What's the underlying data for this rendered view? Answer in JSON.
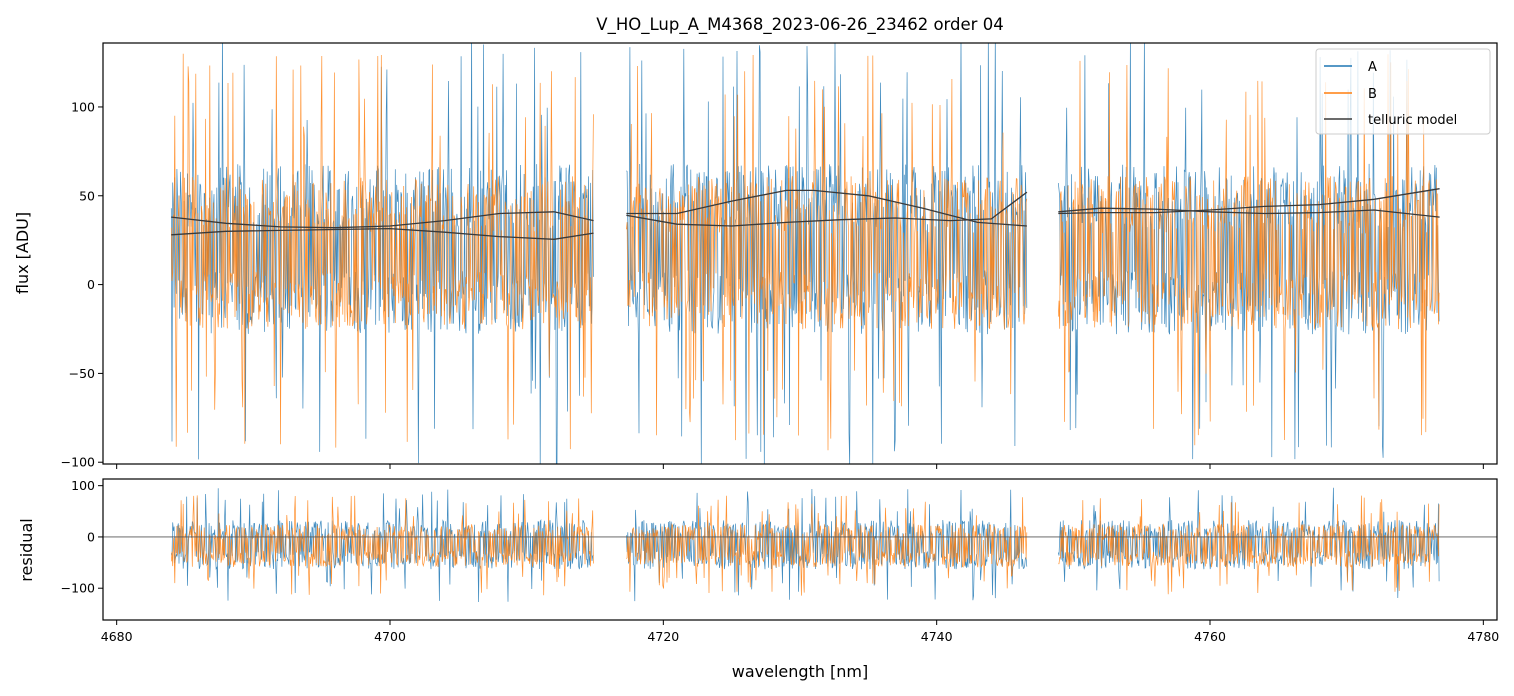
{
  "chart_data": {
    "type": "line",
    "title": "V_HO_Lup_A_M4368_2023-06-26_23462  order 04",
    "xlabel": "wavelength [nm]",
    "xlim": [
      4679,
      4781
    ],
    "x_ticks": [
      4680,
      4700,
      4720,
      4740,
      4760,
      4780
    ],
    "x_tick_labels": [
      "4680",
      "4700",
      "4720",
      "4740",
      "4760",
      "4780"
    ],
    "segments": [
      [
        4684.0,
        4714.9
      ],
      [
        4717.3,
        4746.6
      ],
      [
        4748.9,
        4776.8
      ]
    ],
    "legend": {
      "position": "top-right",
      "entries": [
        "A",
        "B",
        "telluric model"
      ]
    },
    "colors": {
      "A": "#1f77b4",
      "B": "#ff7f0e",
      "telluric": "#3a3a3a",
      "zero_line": "#555555"
    },
    "panels": [
      {
        "name": "main",
        "ylabel": "flux [ADU]",
        "ylim": [
          -101,
          136
        ],
        "y_ticks": [
          -100,
          -50,
          0,
          50,
          100
        ],
        "y_tick_labels": [
          "−100",
          "−50",
          "0",
          "50",
          "100"
        ],
        "series": [
          {
            "name": "A",
            "style": "noise",
            "center": 20,
            "amplitude": 40,
            "spike_amplitude": 90
          },
          {
            "name": "B",
            "style": "noise",
            "center": 18,
            "amplitude": 36,
            "spike_amplitude": 80
          }
        ],
        "telluric_model": [
          {
            "x": [
              4684,
              4688,
              4692,
              4696,
              4700,
              4704,
              4708,
              4712,
              4714.9
            ],
            "y": [
              38,
              34.5,
              32.5,
              32,
              33,
              36,
              40,
              41,
              36
            ]
          },
          {
            "x": [
              4684,
              4688,
              4692,
              4696,
              4700,
              4704,
              4708,
              4712,
              4714.9
            ],
            "y": [
              28,
              30,
              30.5,
              31,
              31.5,
              29.5,
              27,
              25.5,
              29
            ]
          },
          {
            "x": [
              4717.3,
              4721,
              4725,
              4729,
              4731,
              4735,
              4739,
              4743,
              4746.6
            ],
            "y": [
              40,
              40,
              47,
              53,
              53,
              50,
              43,
              35,
              33
            ]
          },
          {
            "x": [
              4717.3,
              4721,
              4725,
              4729,
              4733,
              4737,
              4741,
              4744,
              4746.6
            ],
            "y": [
              39,
              34,
              33,
              35,
              36.5,
              37.5,
              36,
              37,
              52
            ]
          },
          {
            "x": [
              4748.9,
              4752,
              4756,
              4760,
              4764,
              4768,
              4772,
              4776.8
            ],
            "y": [
              41,
              43,
              42.5,
              41,
              40,
              40.5,
              42,
              38
            ]
          },
          {
            "x": [
              4748.9,
              4752,
              4756,
              4760,
              4764,
              4768,
              4772,
              4776.8
            ],
            "y": [
              40,
              40.5,
              40.5,
              42,
              44,
              45,
              48,
              54
            ]
          }
        ]
      },
      {
        "name": "residual",
        "ylabel": "residual",
        "ylim": [
          -162,
          113
        ],
        "y_ticks": [
          -100,
          0,
          100
        ],
        "y_tick_labels": [
          "−100",
          "0",
          "100"
        ],
        "zero_line": 0,
        "series": [
          {
            "name": "A",
            "style": "noise",
            "center": -15,
            "amplitude": 40,
            "spike_amplitude": 80
          },
          {
            "name": "B",
            "style": "noise",
            "center": -17,
            "amplitude": 35,
            "spike_amplitude": 70
          }
        ]
      }
    ]
  }
}
